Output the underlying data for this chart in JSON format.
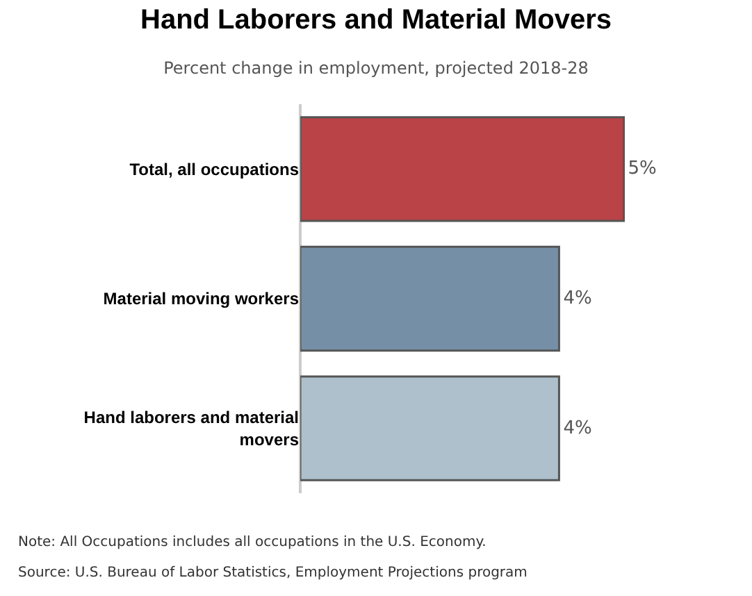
{
  "chart_data": {
    "type": "bar",
    "orientation": "horizontal",
    "title": "Hand Laborers and Material Movers",
    "subtitle": "Percent change in employment, projected 2018-28",
    "categories": [
      "Total, all occupations",
      "Material moving workers",
      "Hand laborers and material movers"
    ],
    "values": [
      5,
      4,
      4
    ],
    "colors": [
      "#b94346",
      "#7590a6",
      "#adc0cc"
    ],
    "value_labels": [
      "5%",
      "4%",
      "4%"
    ],
    "tick_labels": "y",
    "legend": false,
    "annotations": [
      "Note: All Occupations includes all occupations in the U.S. Economy.",
      "Source: U.S. Bureau of Labor Statistics, Employment Projections program"
    ]
  }
}
